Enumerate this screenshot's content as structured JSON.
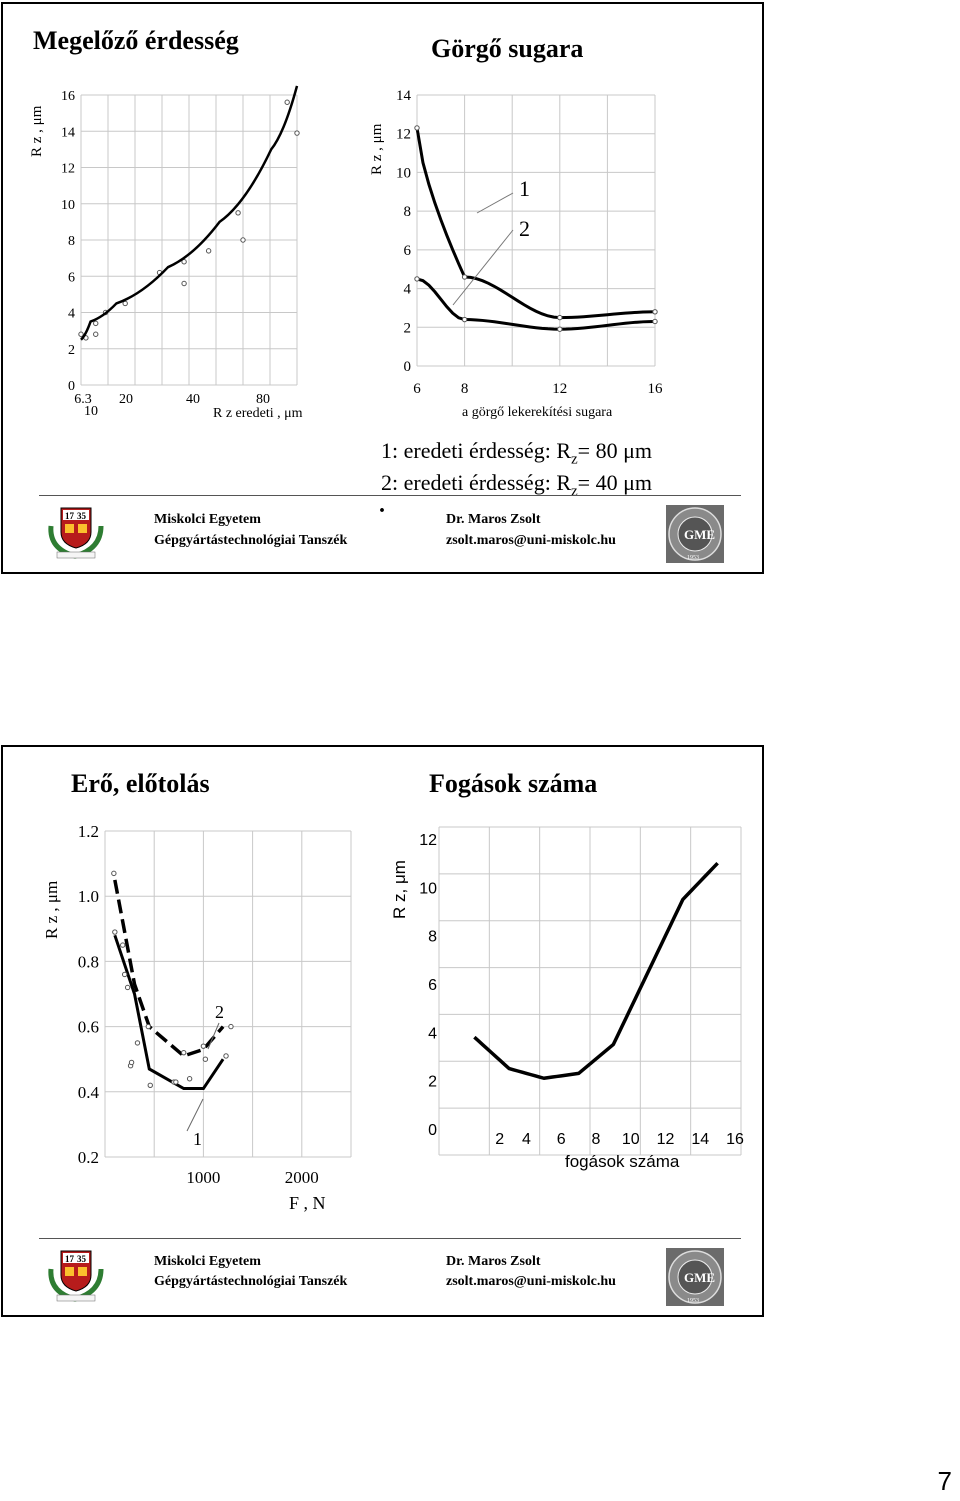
{
  "slide1": {
    "title_left": "Megelőző érdesség",
    "title_right": "Görgő sugara",
    "legend_line1_pre": "1: eredeti érdesség: R",
    "legend_line1_sub": "z",
    "legend_line1_post": "= 80 μm",
    "legend_line2_pre": "2: eredeti érdesség: R",
    "legend_line2_sub": "z",
    "legend_line2_post": "= 40 μm",
    "dot": ".",
    "footer": {
      "university": "Miskolci Egyetem",
      "department": "Gépgyártástechnológiai Tanszék",
      "author": "Dr. Maros Zsolt",
      "email": "zsolt.maros@uni-miskolc.hu"
    }
  },
  "slide2": {
    "title_left": "Erő, előtolás",
    "title_right": "Fogások száma",
    "footer": {
      "university": "Miskolci Egyetem",
      "department": "Gépgyártástechnológiai Tanszék",
      "author": "Dr. Maros Zsolt",
      "email": "zsolt.maros@uni-miskolc.hu"
    }
  },
  "logo_left": {
    "year_left": "17",
    "year_right": "35"
  },
  "logo_right": {
    "letters": "GME",
    "year": "1953"
  },
  "page_number": "7",
  "chart_data": [
    {
      "type": "scatter",
      "ylabel": "R z , μm",
      "xlabel": "R z eredeti , μm",
      "x_ticks": [
        "6.3",
        "10",
        "20",
        "40",
        "80"
      ],
      "y_ticks": [
        "0",
        "2",
        "4",
        "6",
        "8",
        "10",
        "12",
        "14",
        "16"
      ],
      "series": [
        {
          "values_x": [
            6.3,
            10,
            20,
            40,
            60,
            80,
            90
          ],
          "values_y": [
            2.5,
            3.5,
            4.5,
            6.5,
            9,
            13,
            16.5
          ]
        }
      ],
      "points": [
        [
          6,
          2.8
        ],
        [
          7,
          2.6
        ],
        [
          9,
          3.4
        ],
        [
          9,
          2.8
        ],
        [
          11,
          4.0
        ],
        [
          15,
          4.5
        ],
        [
          22,
          6.2
        ],
        [
          27,
          6.8
        ],
        [
          27,
          5.6
        ],
        [
          32,
          7.4
        ],
        [
          38,
          9.5
        ],
        [
          39,
          8.0
        ],
        [
          48,
          15.6
        ],
        [
          50,
          13.9
        ]
      ]
    },
    {
      "type": "line",
      "ylabel": "R z , μm",
      "xlabel": "a görgő lekerekítési sugara",
      "x_ticks": [
        "6",
        "8",
        "12",
        "16"
      ],
      "y_ticks": [
        "0",
        "2",
        "4",
        "6",
        "8",
        "10",
        "12",
        "14"
      ],
      "series": [
        {
          "name": "1",
          "x": [
            6,
            8,
            12,
            16
          ],
          "y": [
            12.3,
            4.6,
            2.5,
            2.8
          ]
        },
        {
          "name": "2",
          "x": [
            6,
            8,
            12,
            16
          ],
          "y": [
            4.5,
            2.4,
            1.9,
            2.3
          ]
        }
      ]
    },
    {
      "type": "line",
      "ylabel": "R z , μm",
      "xlabel": "F , N",
      "x_ticks": [
        "1000",
        "2000"
      ],
      "y_ticks": [
        "0.2",
        "0.4",
        "0.6",
        "0.8",
        "1.0",
        "1.2"
      ],
      "series": [
        {
          "name": "1",
          "x": [
            100,
            300,
            450,
            800,
            1000,
            1200
          ],
          "y": [
            0.88,
            0.7,
            0.47,
            0.41,
            0.41,
            0.5
          ]
        },
        {
          "name": "2",
          "x": [
            100,
            300,
            450,
            800,
            1000,
            1200
          ],
          "y": [
            1.05,
            0.73,
            0.6,
            0.51,
            0.53,
            0.6
          ]
        }
      ]
    },
    {
      "type": "line",
      "ylabel": "R z, μm",
      "xlabel": "fogások száma",
      "x_ticks": [
        "2",
        "4",
        "6",
        "8",
        "10",
        "12",
        "14",
        "16"
      ],
      "y_ticks": [
        "0",
        "2",
        "4",
        "6",
        "8",
        "10",
        "12"
      ],
      "series": [
        {
          "x": [
            1,
            3,
            5,
            7,
            9,
            11,
            13,
            15
          ],
          "y": [
            3.8,
            2.5,
            2.1,
            2.3,
            3.5,
            6.5,
            9.5,
            11.0
          ]
        }
      ]
    }
  ]
}
